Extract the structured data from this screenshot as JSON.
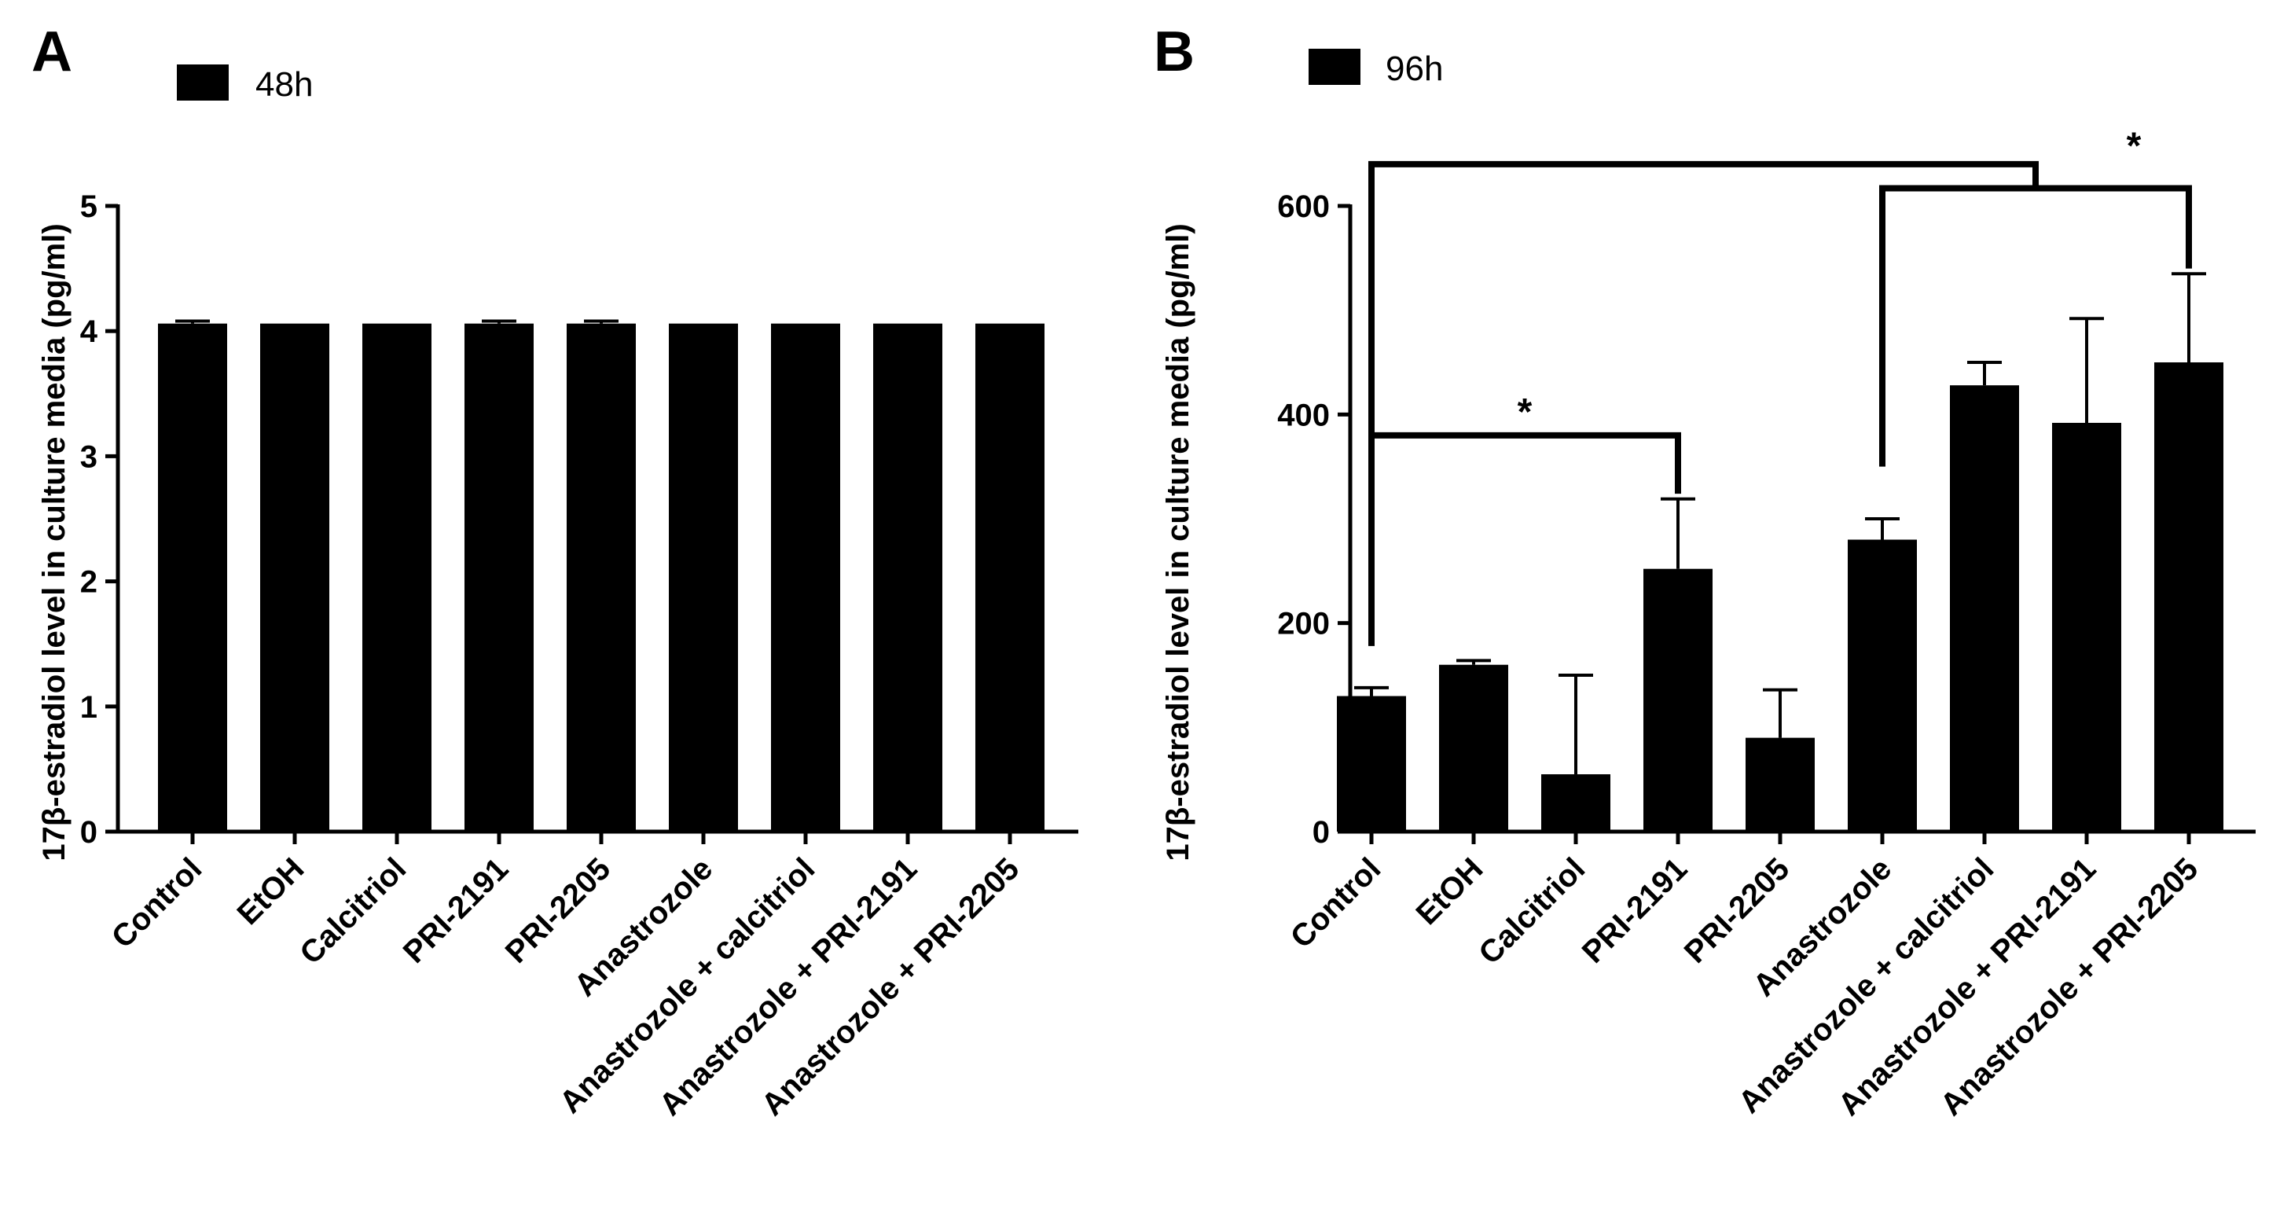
{
  "colors": {
    "bar": "#000000",
    "axis": "#000000",
    "background": "#ffffff"
  },
  "chart_data": [
    {
      "panel": "A",
      "type": "bar",
      "legend": "48h",
      "ylabel": "17β-estradiol level in culture media (pg/ml)",
      "ylim": [
        0,
        5
      ],
      "yticks": [
        0,
        1,
        2,
        3,
        4,
        5
      ],
      "categories": [
        "Control",
        "EtOH",
        "Calcitriol",
        "PRI-2191",
        "PRI-2205",
        "Anastrozole",
        "Anastrozole + calcitriol",
        "Anastrozole + PRI-2191",
        "Anastrozole + PRI-2205"
      ],
      "values": [
        4.06,
        4.06,
        4.06,
        4.06,
        4.06,
        4.06,
        4.06,
        4.06,
        4.06
      ],
      "errors": [
        0.02,
        0,
        0,
        0.02,
        0.02,
        0,
        0,
        0,
        0
      ],
      "significance": []
    },
    {
      "panel": "B",
      "type": "bar",
      "legend": "96h",
      "ylabel": "17β-estradiol level in culture media (pg/ml)",
      "ylim": [
        0,
        600
      ],
      "yticks": [
        0,
        200,
        400,
        600
      ],
      "categories": [
        "Control",
        "EtOH",
        "Calcitriol",
        "PRI-2191",
        "PRI-2205",
        "Anastrozole",
        "Anastrozole + calcitriol",
        "Anastrozole + PRI-2191",
        "Anastrozole + PRI-2205"
      ],
      "values": [
        130,
        160,
        55,
        252,
        90,
        280,
        428,
        392,
        450
      ],
      "errors": [
        8,
        4,
        95,
        67,
        46,
        20,
        22,
        100,
        85
      ],
      "significance": [
        {
          "from": 0,
          "to": 3,
          "level": 380,
          "label": "*"
        },
        {
          "from": 5,
          "to": 8,
          "level": 620,
          "label": "*"
        },
        {
          "from": 0,
          "to_bracket": 1,
          "level": 640,
          "label": ""
        }
      ]
    }
  ]
}
